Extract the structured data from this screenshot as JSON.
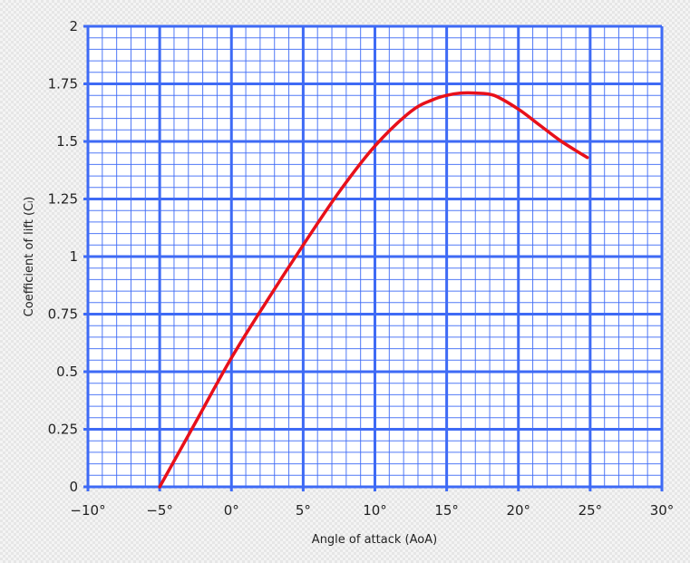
{
  "chart_data": {
    "type": "line",
    "title": "",
    "xlabel": "Angle of attack (AoA)",
    "ylabel": "Coefficient of lift (Cₗ)",
    "xlim": [
      -10,
      30
    ],
    "ylim": [
      0,
      2
    ],
    "grid": true,
    "x_ticks": [
      -10,
      -5,
      0,
      5,
      10,
      15,
      20,
      25,
      30
    ],
    "x_tick_labels": [
      "−10°",
      "−5°",
      "0°",
      "5°",
      "10°",
      "15°",
      "20°",
      "25°",
      "30°"
    ],
    "y_ticks": [
      0,
      0.25,
      0.5,
      0.75,
      1,
      1.25,
      1.5,
      1.75,
      2
    ],
    "y_tick_labels": [
      "0",
      "0.25",
      "0.5",
      "0.75",
      "1",
      "1.25",
      "1.5",
      "1.75",
      "2"
    ],
    "series": [
      {
        "color": "#e8101a",
        "x": [
          -5,
          -2.5,
          0,
          2.5,
          5,
          7.5,
          10,
          12.5,
          14,
          15,
          16,
          17,
          18.3,
          20,
          21.5,
          23,
          24.8
        ],
        "y": [
          0,
          0.28,
          0.56,
          0.81,
          1.05,
          1.28,
          1.48,
          1.63,
          1.68,
          1.7,
          1.71,
          1.71,
          1.7,
          1.64,
          1.57,
          1.5,
          1.43
        ]
      }
    ],
    "colors": {
      "grid_major": "#3e6af5",
      "grid_minor": "#3e6af5"
    }
  }
}
